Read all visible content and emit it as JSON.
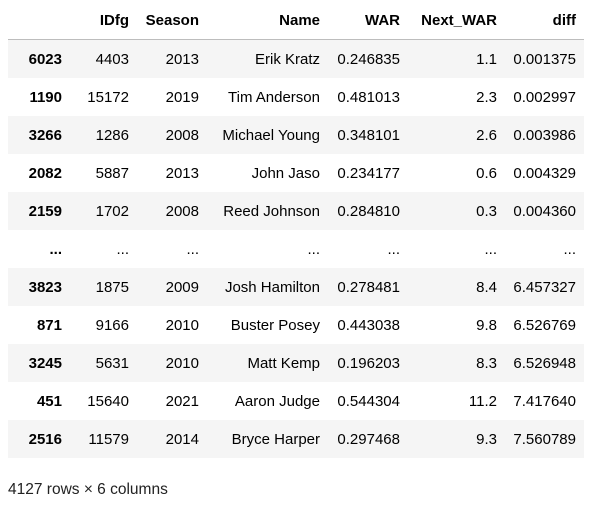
{
  "table": {
    "columns": [
      "",
      "IDfg",
      "Season",
      "Name",
      "WAR",
      "Next_WAR",
      "diff"
    ],
    "rows": [
      {
        "index": "6023",
        "cells": [
          "4403",
          "2013",
          "Erik Kratz",
          "0.246835",
          "1.1",
          "0.001375"
        ]
      },
      {
        "index": "1190",
        "cells": [
          "15172",
          "2019",
          "Tim Anderson",
          "0.481013",
          "2.3",
          "0.002997"
        ]
      },
      {
        "index": "3266",
        "cells": [
          "1286",
          "2008",
          "Michael Young",
          "0.348101",
          "2.6",
          "0.003986"
        ]
      },
      {
        "index": "2082",
        "cells": [
          "5887",
          "2013",
          "John Jaso",
          "0.234177",
          "0.6",
          "0.004329"
        ]
      },
      {
        "index": "2159",
        "cells": [
          "1702",
          "2008",
          "Reed Johnson",
          "0.284810",
          "0.3",
          "0.004360"
        ]
      },
      {
        "index": "...",
        "cells": [
          "...",
          "...",
          "...",
          "...",
          "...",
          "..."
        ]
      },
      {
        "index": "3823",
        "cells": [
          "1875",
          "2009",
          "Josh Hamilton",
          "0.278481",
          "8.4",
          "6.457327"
        ]
      },
      {
        "index": "871",
        "cells": [
          "9166",
          "2010",
          "Buster Posey",
          "0.443038",
          "9.8",
          "6.526769"
        ]
      },
      {
        "index": "3245",
        "cells": [
          "5631",
          "2010",
          "Matt Kemp",
          "0.196203",
          "8.3",
          "6.526948"
        ]
      },
      {
        "index": "451",
        "cells": [
          "15640",
          "2021",
          "Aaron Judge",
          "0.544304",
          "11.2",
          "7.417640"
        ]
      },
      {
        "index": "2516",
        "cells": [
          "11579",
          "2014",
          "Bryce Harper",
          "0.297468",
          "9.3",
          "7.560789"
        ]
      }
    ]
  },
  "shape_text": "4127 rows × 6 columns",
  "colors": {
    "row_stripe": "#f5f5f5",
    "header_rule": "#bdbdbd"
  }
}
